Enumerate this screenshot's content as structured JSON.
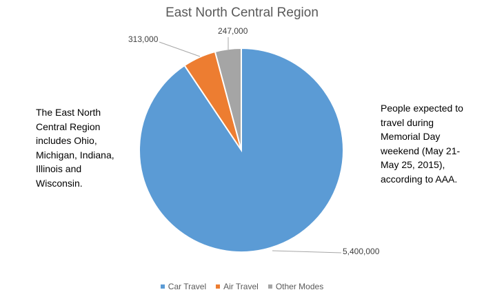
{
  "chart_data": {
    "type": "pie",
    "title": "East North Central Region",
    "categories": [
      "Car Travel",
      "Air Travel",
      "Other Modes"
    ],
    "values": [
      5400000,
      313000,
      247000
    ],
    "value_labels": [
      "5,400,000",
      "313,000",
      "247,000"
    ],
    "colors": [
      "#5b9bd5",
      "#ed7d31",
      "#a5a5a5"
    ],
    "legend_position": "bottom",
    "annotations": [
      "The East North Central Region includes Ohio, Michigan, Indiana, Illinois and Wisconsin.",
      "People expected to travel during Memorial Day weekend (May 21-May 25, 2015), according to AAA."
    ]
  },
  "title": "East North Central Region",
  "notes": {
    "left": "The East North Central Region includes Ohio, Michigan, Indiana, Illinois and Wisconsin.",
    "right": "People expected to travel during Memorial Day weekend (May 21-May 25, 2015), according to AAA."
  },
  "labels": {
    "car": "5,400,000",
    "air": "313,000",
    "other": "247,000"
  },
  "legend": [
    {
      "label": "Car Travel",
      "color": "#5b9bd5"
    },
    {
      "label": "Air Travel",
      "color": "#ed7d31"
    },
    {
      "label": "Other Modes",
      "color": "#a5a5a5"
    }
  ]
}
